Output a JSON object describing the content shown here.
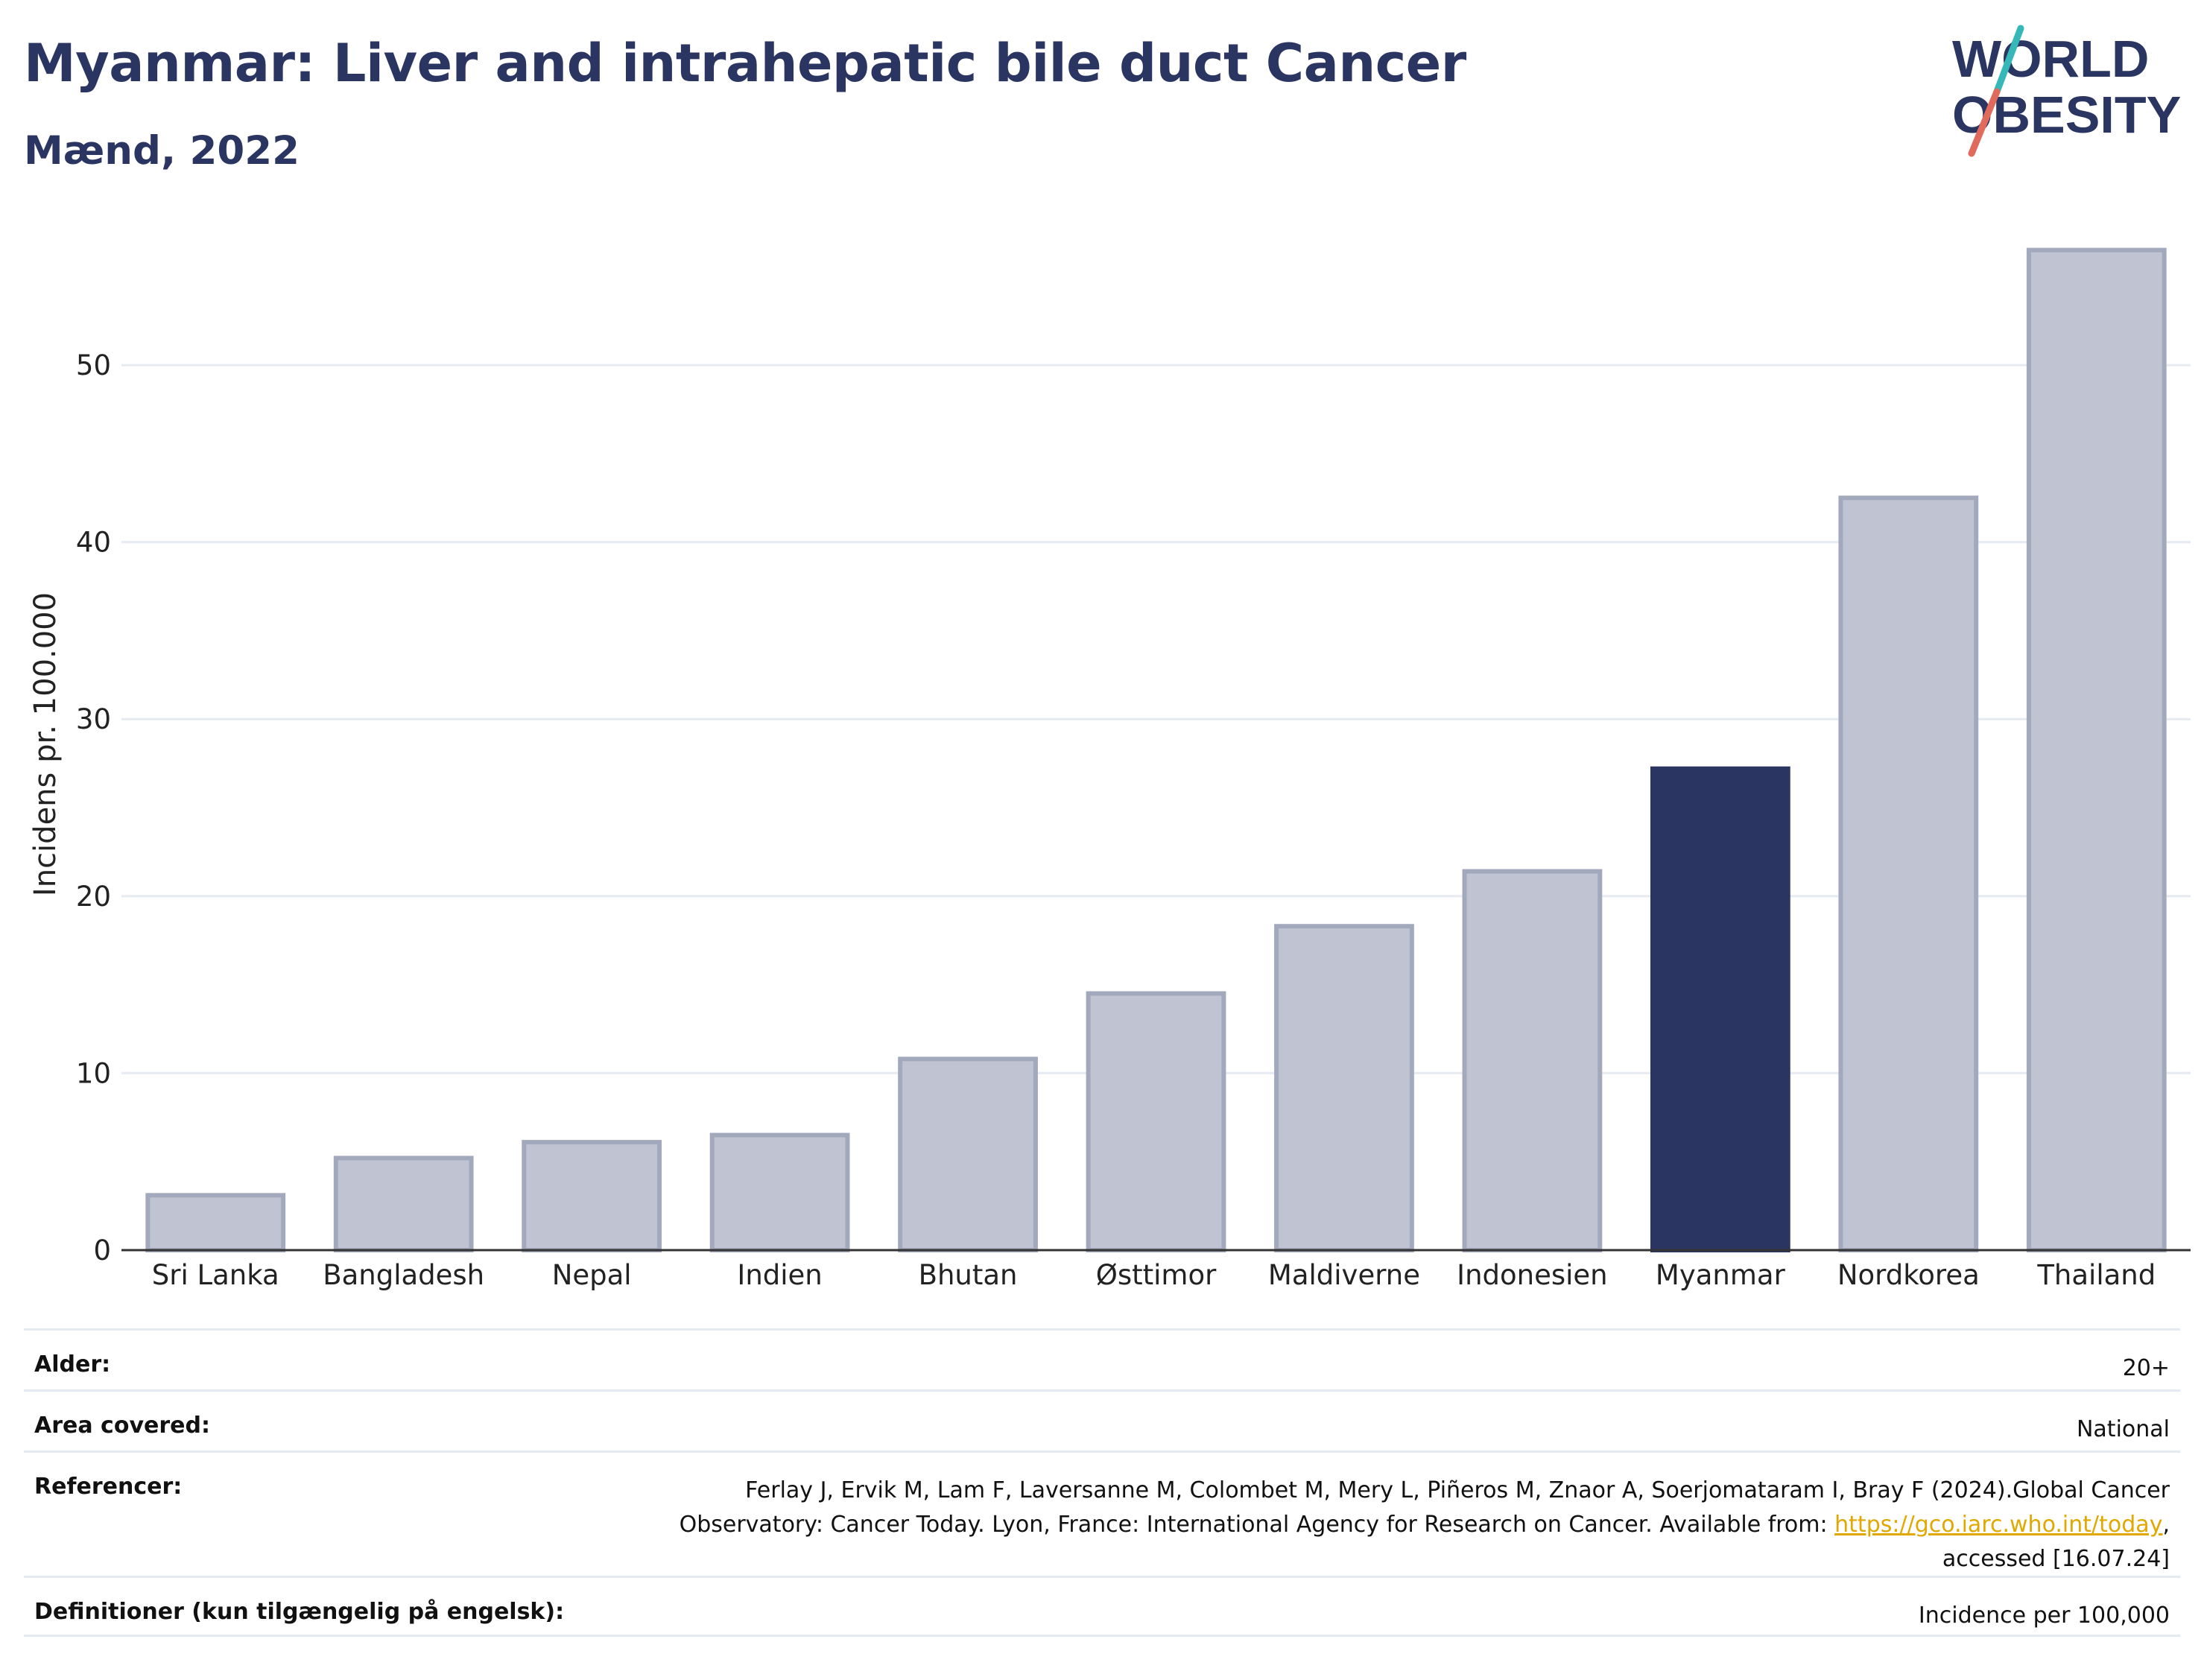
{
  "header": {
    "title": "Myanmar: Liver and intrahepatic bile duct Cancer",
    "subtitle": "Mænd, 2022"
  },
  "logo": {
    "line1": "WORLD",
    "line2": "OBESITY",
    "colors": {
      "text": "#2b3561",
      "slash_top": "#36b8b8",
      "slash_bottom": "#e06b5c"
    }
  },
  "chart_data": {
    "type": "bar",
    "categories": [
      "Sri Lanka",
      "Bangladesh",
      "Nepal",
      "Indien",
      "Bhutan",
      "Østtimor",
      "Maldiverne",
      "Indonesien",
      "Myanmar",
      "Nordkorea",
      "Thailand"
    ],
    "values": [
      3.1,
      5.2,
      6.1,
      6.5,
      10.8,
      14.5,
      18.3,
      21.4,
      27.2,
      42.5,
      56.5
    ],
    "highlight": "Myanmar",
    "ylabel": "Incidens pr. 100.000",
    "xlabel": "",
    "ylim": [
      0,
      58
    ],
    "yticks": [
      0,
      10,
      20,
      30,
      40,
      50
    ],
    "grid": true,
    "colors": {
      "bar": "#c0c4d2",
      "bar_edge": "#a3a9bd",
      "highlight": "#2b3561"
    }
  },
  "meta": {
    "age_label": "Alder:",
    "age_value": "20+",
    "area_label": "Area covered:",
    "area_value": "National",
    "ref_label": "Referencer:",
    "ref_line1": "Ferlay J, Ervik M, Lam F, Laversanne M, Colombet M, Mery L, Piñeros M, Znaor A, Soerjomataram I, Bray F (2024).Global Cancer",
    "ref_line2_pre": "Observatory: Cancer Today. Lyon, France: International Agency for Research on Cancer. Available from: ",
    "ref_link": "https://gco.iarc.who.int/today",
    "ref_line2_post": ",",
    "ref_line3": "accessed [16.07.24]",
    "def_label": "Definitioner (kun tilgængelig på engelsk):",
    "def_value": "Incidence per 100,000"
  }
}
